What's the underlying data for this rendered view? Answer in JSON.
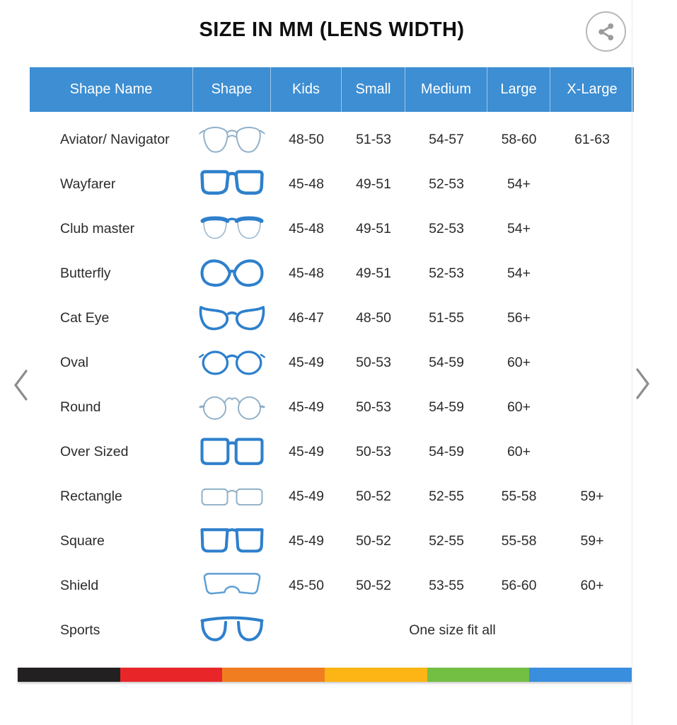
{
  "title": "SIZE IN MM (LENS WIDTH)",
  "toolbar": {
    "share_icon": "share-icon"
  },
  "carousel": {
    "prev_icon": "chevron-left-icon",
    "next_icon": "chevron-right-icon"
  },
  "table": {
    "columns": [
      "Shape Name",
      "Shape",
      "Kids",
      "Small",
      "Medium",
      "Large",
      "X-Large"
    ],
    "rows": [
      {
        "name": "Aviator/ Navigator",
        "icon": "aviator",
        "sizes": [
          "48-50",
          "51-53",
          "54-57",
          "58-60",
          "61-63"
        ]
      },
      {
        "name": "Wayfarer",
        "icon": "wayfarer",
        "sizes": [
          "45-48",
          "49-51",
          "52-53",
          "54+",
          ""
        ]
      },
      {
        "name": "Club master",
        "icon": "clubmaster",
        "sizes": [
          "45-48",
          "49-51",
          "52-53",
          "54+",
          ""
        ]
      },
      {
        "name": "Butterfly",
        "icon": "butterfly",
        "sizes": [
          "45-48",
          "49-51",
          "52-53",
          "54+",
          ""
        ]
      },
      {
        "name": "Cat Eye",
        "icon": "cateye",
        "sizes": [
          "46-47",
          "48-50",
          "51-55",
          "56+",
          ""
        ]
      },
      {
        "name": "Oval",
        "icon": "oval",
        "sizes": [
          "45-49",
          "50-53",
          "54-59",
          "60+",
          ""
        ]
      },
      {
        "name": "Round",
        "icon": "round",
        "sizes": [
          "45-49",
          "50-53",
          "54-59",
          "60+",
          ""
        ]
      },
      {
        "name": "Over Sized",
        "icon": "oversized",
        "sizes": [
          "45-49",
          "50-53",
          "54-59",
          "60+",
          ""
        ]
      },
      {
        "name": "Rectangle",
        "icon": "rectangle",
        "sizes": [
          "45-49",
          "50-52",
          "52-55",
          "55-58",
          "59+"
        ]
      },
      {
        "name": "Square",
        "icon": "square",
        "sizes": [
          "45-49",
          "50-52",
          "52-55",
          "55-58",
          "59+"
        ]
      },
      {
        "name": "Shield",
        "icon": "shield",
        "sizes": [
          "45-50",
          "50-52",
          "53-55",
          "56-60",
          "60+"
        ]
      },
      {
        "name": "Sports",
        "icon": "sports",
        "span_text": "One size fit all"
      }
    ]
  },
  "colors": {
    "header_bg": "#3d8ed2",
    "frame_blue": "#2e80cc",
    "frame_light": "#8fb0c8",
    "stripe": [
      "#232021",
      "#e8262a",
      "#f07e21",
      "#fdb415",
      "#72bf44",
      "#3a8ede"
    ]
  }
}
